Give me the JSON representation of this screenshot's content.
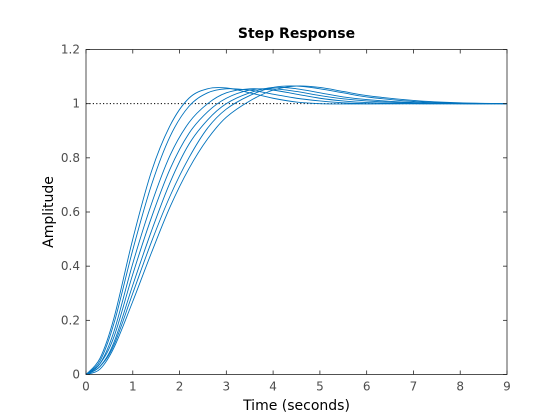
{
  "chart_data": {
    "type": "line",
    "title": "Step Response",
    "xlabel": "Time (seconds)",
    "ylabel": "Amplitude",
    "xlim": [
      0,
      9
    ],
    "ylim": [
      0,
      1.2
    ],
    "xticks": [
      0,
      1,
      2,
      3,
      4,
      5,
      6,
      7,
      8,
      9
    ],
    "yticks": [
      0,
      0.2,
      0.4,
      0.6,
      0.8,
      1.0,
      1.2
    ],
    "xtick_labels": [
      "0",
      "1",
      "2",
      "3",
      "4",
      "5",
      "6",
      "7",
      "8",
      "9"
    ],
    "ytick_labels": [
      "0",
      "0.2",
      "0.4",
      "0.6",
      "0.8",
      "1",
      "1.2"
    ],
    "grid": false,
    "reference_line": {
      "y": 1,
      "style": "dotted",
      "color": "#000000"
    },
    "line_color": "#0072bd",
    "series": [
      {
        "x": [
          0,
          0.3,
          0.6,
          1.0,
          1.4,
          1.8,
          2.2,
          2.6,
          3.0,
          3.5,
          4.0,
          4.5,
          5.0,
          5.5,
          6.0,
          7.0,
          8.0,
          9.0
        ],
        "y": [
          0,
          0.06,
          0.21,
          0.5,
          0.75,
          0.92,
          1.02,
          1.055,
          1.058,
          1.04,
          1.02,
          1.006,
          1.0,
          0.999,
          0.999,
          1.0,
          1.0,
          1.0
        ]
      },
      {
        "x": [
          0,
          0.3,
          0.6,
          1.0,
          1.4,
          1.8,
          2.2,
          2.6,
          3.0,
          3.5,
          4.0,
          4.5,
          5.0,
          5.5,
          6.0,
          7.0,
          8.0,
          9.0
        ],
        "y": [
          0,
          0.05,
          0.19,
          0.46,
          0.7,
          0.88,
          0.99,
          1.04,
          1.055,
          1.05,
          1.035,
          1.02,
          1.01,
          1.003,
          1.0,
          1.0,
          1.0,
          1.0
        ]
      },
      {
        "x": [
          0,
          0.3,
          0.6,
          1.0,
          1.4,
          1.8,
          2.2,
          2.6,
          3.0,
          3.5,
          4.0,
          4.5,
          5.0,
          5.5,
          6.0,
          7.0,
          8.0,
          9.0
        ],
        "y": [
          0,
          0.04,
          0.16,
          0.41,
          0.63,
          0.81,
          0.93,
          1.0,
          1.04,
          1.055,
          1.05,
          1.035,
          1.02,
          1.01,
          1.004,
          1.0,
          1.0,
          1.0
        ]
      },
      {
        "x": [
          0,
          0.3,
          0.6,
          1.0,
          1.4,
          1.8,
          2.2,
          2.6,
          3.0,
          3.5,
          4.0,
          4.5,
          5.0,
          5.5,
          6.0,
          7.0,
          8.0,
          9.0
        ],
        "y": [
          0,
          0.04,
          0.14,
          0.37,
          0.58,
          0.76,
          0.89,
          0.97,
          1.02,
          1.05,
          1.055,
          1.045,
          1.03,
          1.018,
          1.01,
          1.002,
          1.0,
          1.0
        ]
      },
      {
        "x": [
          0,
          0.3,
          0.6,
          1.0,
          1.4,
          1.8,
          2.2,
          2.6,
          3.0,
          3.5,
          4.0,
          4.5,
          5.0,
          5.5,
          6.0,
          7.0,
          8.0,
          9.0
        ],
        "y": [
          0,
          0.03,
          0.12,
          0.33,
          0.53,
          0.71,
          0.85,
          0.94,
          1.0,
          1.04,
          1.06,
          1.055,
          1.04,
          1.025,
          1.015,
          1.004,
          1.0,
          1.0
        ]
      },
      {
        "x": [
          0,
          0.3,
          0.6,
          1.0,
          1.4,
          1.8,
          2.2,
          2.6,
          3.0,
          3.5,
          4.0,
          4.5,
          5.0,
          5.5,
          6.0,
          7.0,
          8.0,
          9.0
        ],
        "y": [
          0,
          0.03,
          0.11,
          0.3,
          0.49,
          0.66,
          0.8,
          0.91,
          0.98,
          1.03,
          1.06,
          1.065,
          1.055,
          1.04,
          1.025,
          1.008,
          1.002,
          1.0
        ]
      },
      {
        "x": [
          0,
          0.3,
          0.6,
          1.0,
          1.4,
          1.8,
          2.2,
          2.6,
          3.0,
          3.5,
          4.0,
          4.5,
          5.0,
          5.5,
          6.0,
          7.0,
          8.0,
          9.0
        ],
        "y": [
          0,
          0.02,
          0.1,
          0.27,
          0.45,
          0.62,
          0.76,
          0.87,
          0.95,
          1.01,
          1.05,
          1.065,
          1.06,
          1.045,
          1.03,
          1.012,
          1.003,
          1.0
        ]
      }
    ]
  }
}
